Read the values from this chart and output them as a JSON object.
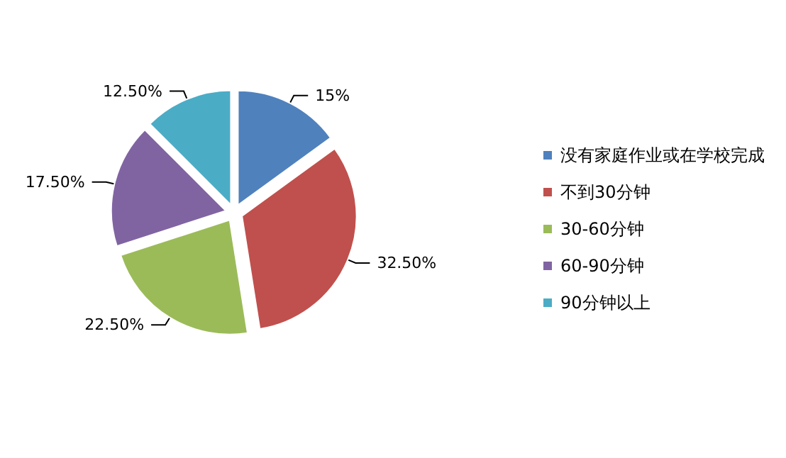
{
  "chart_data": {
    "type": "pie",
    "categories": [
      "没有家庭作业或在学校完成",
      "不到30分钟",
      "30-60分钟",
      "60-90分钟",
      "90分钟以上"
    ],
    "values": [
      15,
      32.5,
      22.5,
      17.5,
      12.5
    ],
    "value_labels": [
      "15%",
      "32.50%",
      "22.50%",
      "17.50%",
      "12.50%"
    ],
    "colors": [
      "#4f81bd",
      "#c0504d",
      "#9bbb59",
      "#8064a2",
      "#4bacc6"
    ],
    "legend": "right"
  }
}
